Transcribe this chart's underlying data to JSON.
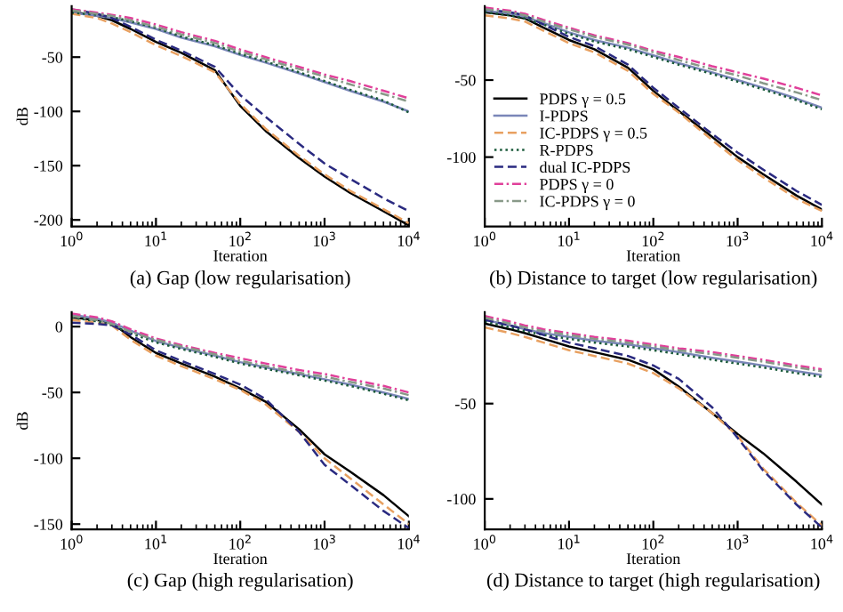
{
  "chart_data": [
    {
      "type": "line",
      "title": "(a) Gap (low regularisation)",
      "xlabel": "Iteration",
      "ylabel": "dB",
      "log": "x",
      "x": [
        1,
        2,
        3,
        5,
        10,
        20,
        50,
        100,
        200,
        500,
        1000,
        2000,
        5000,
        10000
      ],
      "xlim": [
        1,
        10000
      ],
      "xticks": [
        {
          "value": 1,
          "label": "10$^{0}$"
        },
        {
          "value": 10,
          "label": "10$^{1}$"
        },
        {
          "value": 100,
          "label": "10$^{2}$"
        },
        {
          "value": 1000,
          "label": "10$^{3}$"
        },
        {
          "value": 10000,
          "label": "10$^{4}$"
        }
      ],
      "ylim": [
        -206,
        -3
      ],
      "yticks": [
        -200,
        -150,
        -100,
        -50
      ],
      "series": [
        {
          "color": "#000000",
          "line_style": "solid",
          "values": [
            -8,
            -12,
            -16,
            -24,
            -36,
            -46,
            -62,
            -95,
            -118,
            -143,
            -160,
            -175,
            -192,
            -205
          ]
        },
        {
          "color": "#7a86b8",
          "line_style": "solid",
          "values": [
            -9,
            -12,
            -14,
            -18,
            -24,
            -32,
            -40,
            -48,
            -55,
            -65,
            -73,
            -81,
            -91,
            -100
          ]
        },
        {
          "color": "#e8a060",
          "line_style": "dashed",
          "values": [
            -10,
            -14,
            -19,
            -27,
            -39,
            -49,
            -64,
            -93,
            -116,
            -141,
            -158,
            -173,
            -190,
            -203
          ]
        },
        {
          "color": "#1a5a3a",
          "line_style": "dotted",
          "values": [
            -9,
            -11,
            -13,
            -17,
            -23,
            -31,
            -39,
            -47,
            -54,
            -64,
            -72,
            -80,
            -90,
            -101
          ]
        },
        {
          "color": "#2a2a80",
          "line_style": "dashed",
          "values": [
            -6,
            -10,
            -14,
            -22,
            -34,
            -44,
            -59,
            -85,
            -105,
            -130,
            -148,
            -162,
            -180,
            -192
          ]
        },
        {
          "color": "#e0409a",
          "line_style": "dashdot",
          "values": [
            -6,
            -9,
            -11,
            -14,
            -20,
            -27,
            -35,
            -43,
            -50,
            -59,
            -66,
            -72,
            -81,
            -88
          ]
        },
        {
          "color": "#889988",
          "line_style": "dashdot",
          "values": [
            -7,
            -10,
            -12,
            -16,
            -22,
            -29,
            -37,
            -45,
            -52,
            -61,
            -68,
            -75,
            -84,
            -91
          ]
        }
      ]
    },
    {
      "type": "line",
      "title": "(b) Distance to target (low regularisation)",
      "xlabel": "Iteration",
      "log": "x",
      "legend": "center left",
      "x": [
        1,
        2,
        3,
        5,
        10,
        20,
        50,
        100,
        200,
        500,
        1000,
        2000,
        5000,
        10000
      ],
      "xlim": [
        1,
        10000
      ],
      "xticks": [
        {
          "value": 1,
          "label": "10$^{0}$"
        },
        {
          "value": 10,
          "label": "10$^{1}$"
        },
        {
          "value": 100,
          "label": "10$^{2}$"
        },
        {
          "value": 1000,
          "label": "10$^{3}$"
        },
        {
          "value": 10000,
          "label": "10$^{4}$"
        }
      ],
      "ylim": [
        -145,
        -2
      ],
      "yticks": [
        -100,
        -50
      ],
      "series": [
        {
          "name": "PDPS γ = 0.5",
          "color": "#000000",
          "line_style": "solid",
          "values": [
            -6,
            -8,
            -10,
            -16,
            -24,
            -30,
            -42,
            -57,
            -70,
            -87,
            -100,
            -111,
            -125,
            -134
          ]
        },
        {
          "name": "I-PDPS",
          "color": "#7a86b8",
          "line_style": "solid",
          "values": [
            -5,
            -7,
            -9,
            -13,
            -19,
            -24,
            -29,
            -34,
            -39,
            -45,
            -50,
            -55,
            -62,
            -68
          ]
        },
        {
          "name": "IC-PDPS γ = 0.5",
          "color": "#e8a060",
          "line_style": "dashed",
          "values": [
            -8,
            -10,
            -12,
            -18,
            -26,
            -32,
            -44,
            -59,
            -71,
            -89,
            -102,
            -113,
            -127,
            -135
          ]
        },
        {
          "name": "R-PDPS",
          "color": "#1a5a3a",
          "line_style": "dotted",
          "values": [
            -6,
            -8,
            -10,
            -14,
            -20,
            -25,
            -30,
            -35,
            -40,
            -46,
            -51,
            -56,
            -63,
            -69
          ]
        },
        {
          "name": "dual IC-PDPS",
          "color": "#2a2a80",
          "line_style": "dashed",
          "values": [
            -4,
            -6,
            -8,
            -14,
            -22,
            -28,
            -40,
            -55,
            -68,
            -85,
            -97,
            -108,
            -122,
            -131
          ]
        },
        {
          "name": "PDPS γ = 0",
          "color": "#e0409a",
          "line_style": "dashdot",
          "values": [
            -3,
            -5,
            -7,
            -11,
            -16,
            -21,
            -26,
            -31,
            -35,
            -41,
            -45,
            -49,
            -55,
            -60
          ]
        },
        {
          "name": "IC-PDPS γ = 0",
          "color": "#889988",
          "line_style": "dashdot",
          "values": [
            -4,
            -6,
            -8,
            -12,
            -17,
            -22,
            -27,
            -32,
            -37,
            -43,
            -47,
            -52,
            -58,
            -63
          ]
        }
      ]
    },
    {
      "type": "line",
      "title": "(c) Gap (high regularisation)",
      "xlabel": "Iteration",
      "ylabel": "dB",
      "log": "x",
      "x": [
        1,
        2,
        3,
        5,
        10,
        20,
        50,
        100,
        200,
        500,
        1000,
        2000,
        5000,
        10000
      ],
      "xlim": [
        1,
        10000
      ],
      "xticks": [
        {
          "value": 1,
          "label": "10$^{0}$"
        },
        {
          "value": 10,
          "label": "10$^{1}$"
        },
        {
          "value": 100,
          "label": "10$^{2}$"
        },
        {
          "value": 1000,
          "label": "10$^{3}$"
        },
        {
          "value": 10000,
          "label": "10$^{4}$"
        }
      ],
      "ylim": [
        -154,
        11
      ],
      "yticks": [
        -150,
        -100,
        -50,
        0
      ],
      "series": [
        {
          "color": "#000000",
          "line_style": "solid",
          "values": [
            7,
            5,
            3,
            -8,
            -20,
            -28,
            -38,
            -47,
            -57,
            -78,
            -97,
            -110,
            -128,
            -144
          ]
        },
        {
          "color": "#7a86b8",
          "line_style": "solid",
          "values": [
            9,
            6,
            3,
            -3,
            -11,
            -16,
            -22,
            -27,
            -31,
            -36,
            -40,
            -44,
            -50,
            -55
          ]
        },
        {
          "color": "#e8a060",
          "line_style": "dashed",
          "values": [
            5,
            3,
            1,
            -10,
            -22,
            -30,
            -40,
            -48,
            -59,
            -80,
            -100,
            -115,
            -135,
            -150
          ]
        },
        {
          "color": "#1a5a3a",
          "line_style": "dotted",
          "values": [
            7,
            4,
            1,
            -5,
            -12,
            -17,
            -23,
            -28,
            -32,
            -37,
            -41,
            -45,
            -51,
            -56
          ]
        },
        {
          "color": "#2a2a80",
          "line_style": "dashed",
          "values": [
            3,
            2,
            1,
            -6,
            -18,
            -26,
            -36,
            -44,
            -55,
            -80,
            -105,
            -120,
            -140,
            -153
          ]
        },
        {
          "color": "#e0409a",
          "line_style": "dashdot",
          "values": [
            10,
            7,
            4,
            -2,
            -9,
            -14,
            -20,
            -24,
            -28,
            -33,
            -36,
            -40,
            -45,
            -50
          ]
        },
        {
          "color": "#889988",
          "line_style": "dashdot",
          "values": [
            8,
            5,
            2,
            -4,
            -10,
            -15,
            -21,
            -26,
            -30,
            -35,
            -38,
            -42,
            -47,
            -52
          ]
        }
      ]
    },
    {
      "type": "line",
      "title": "(d) Distance to target (high regularisation)",
      "xlabel": "Iteration",
      "log": "x",
      "x": [
        1,
        2,
        3,
        5,
        10,
        20,
        50,
        100,
        200,
        500,
        1000,
        2000,
        5000,
        10000
      ],
      "xlim": [
        1,
        10000
      ],
      "xticks": [
        {
          "value": 1,
          "label": "10$^{0}$"
        },
        {
          "value": 10,
          "label": "10$^{1}$"
        },
        {
          "value": 100,
          "label": "10$^{2}$"
        },
        {
          "value": 1000,
          "label": "10$^{3}$"
        },
        {
          "value": 10000,
          "label": "10$^{4}$"
        }
      ],
      "ylim": [
        -116,
        -2
      ],
      "yticks": [
        -100,
        -50
      ],
      "series": [
        {
          "color": "#000000",
          "line_style": "solid",
          "values": [
            -8,
            -11,
            -13,
            -16,
            -20,
            -23,
            -27,
            -32,
            -41,
            -55,
            -66,
            -76,
            -91,
            -103
          ]
        },
        {
          "color": "#7a86b8",
          "line_style": "solid",
          "values": [
            -6,
            -9,
            -11,
            -13,
            -15,
            -17,
            -19,
            -21,
            -23,
            -26,
            -28,
            -30,
            -33,
            -35
          ]
        },
        {
          "color": "#e8a060",
          "line_style": "dashed",
          "values": [
            -10,
            -13,
            -15,
            -18,
            -22,
            -25,
            -29,
            -34,
            -42,
            -55,
            -67,
            -84,
            -102,
            -114
          ]
        },
        {
          "color": "#1a5a3a",
          "line_style": "dotted",
          "values": [
            -7,
            -10,
            -12,
            -14,
            -16,
            -18,
            -20,
            -22,
            -24,
            -27,
            -29,
            -31,
            -34,
            -36
          ]
        },
        {
          "color": "#2a2a80",
          "line_style": "dashed",
          "values": [
            -6,
            -9,
            -11,
            -14,
            -18,
            -21,
            -25,
            -30,
            -37,
            -52,
            -68,
            -85,
            -103,
            -115
          ]
        },
        {
          "color": "#e0409a",
          "line_style": "dashdot",
          "values": [
            -4,
            -7,
            -9,
            -11,
            -13,
            -15,
            -17,
            -19,
            -21,
            -23,
            -25,
            -27,
            -30,
            -32
          ]
        },
        {
          "color": "#889988",
          "line_style": "dashdot",
          "values": [
            -5,
            -8,
            -10,
            -12,
            -14,
            -16,
            -18,
            -20,
            -22,
            -24,
            -26,
            -28,
            -31,
            -33
          ]
        }
      ]
    }
  ]
}
